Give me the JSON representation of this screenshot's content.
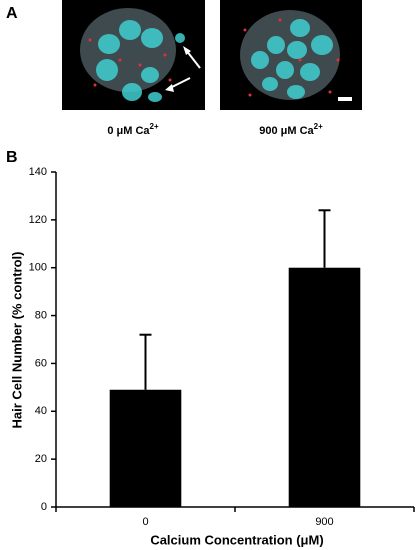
{
  "panel_a": {
    "label": "A",
    "images": [
      {
        "caption": "0 μM Ca",
        "caption_sup": "2+"
      },
      {
        "caption": "900 μM Ca",
        "caption_sup": "2+"
      }
    ]
  },
  "chart_data": {
    "type": "bar",
    "panel_label": "B",
    "y_label": "Hair Cell Number (% control)",
    "x_label": "Calcium Concentration (μM)",
    "categories": [
      "0",
      "900"
    ],
    "values": [
      49,
      100
    ],
    "errors": [
      23,
      24
    ],
    "color": "#000000",
    "ylim": [
      0,
      140
    ],
    "yticks": [
      0,
      20,
      40,
      60,
      80,
      100,
      120,
      140
    ]
  }
}
